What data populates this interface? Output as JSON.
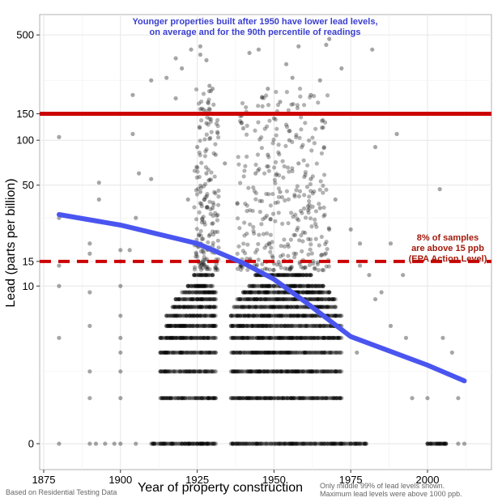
{
  "chart_data": {
    "type": "scatter",
    "title": "Younger properties built after 1950 have lower lead levels,",
    "subtitle": "on average and for the 90th percentile of readings",
    "xlabel": "Year of property construction",
    "ylabel": "Lead (parts per billion)",
    "x_ticks": [
      1875,
      1900,
      1925,
      1950,
      1975,
      2000
    ],
    "y_ticks": [
      0,
      10,
      15,
      50,
      100,
      150,
      500
    ],
    "y_scale": "log(y+1)",
    "xlim": [
      1873,
      2015
    ],
    "ylim": [
      -0.2,
      700
    ],
    "grid": true,
    "reference_lines": [
      {
        "y": 150,
        "style": "solid",
        "color": "#cc0000"
      },
      {
        "y": 15,
        "style": "dashed",
        "color": "#cc0000"
      }
    ],
    "annotation": [
      "8% of samples",
      "are above 15 ppb",
      "(EPA Action Level)"
    ],
    "point_color": "#000000",
    "point_opacity": 0.3,
    "dense_bands": [
      {
        "y": 0,
        "x_ranges": [
          [
            1910,
            1931
          ],
          [
            1936,
            1980
          ],
          [
            2000,
            2006
          ]
        ]
      },
      {
        "y": 1,
        "x_ranges": [
          [
            1913,
            1931
          ],
          [
            1936,
            1972
          ]
        ]
      },
      {
        "y": 2,
        "x_ranges": [
          [
            1913,
            1931
          ],
          [
            1936,
            1972
          ]
        ]
      },
      {
        "y": 3,
        "x_ranges": [
          [
            1913,
            1931
          ],
          [
            1936,
            1972
          ]
        ]
      },
      {
        "y": 4,
        "x_ranges": [
          [
            1913,
            1931
          ],
          [
            1936,
            1972
          ]
        ]
      },
      {
        "y": 5,
        "x_ranges": [
          [
            1915,
            1931
          ],
          [
            1936,
            1972
          ]
        ]
      },
      {
        "y": 6,
        "x_ranges": [
          [
            1915,
            1931
          ],
          [
            1936,
            1972
          ]
        ]
      },
      {
        "y": 7,
        "x_ranges": [
          [
            1917,
            1931
          ],
          [
            1937,
            1970
          ]
        ]
      },
      {
        "y": 8,
        "x_ranges": [
          [
            1918,
            1931
          ],
          [
            1938,
            1970
          ]
        ]
      },
      {
        "y": 9,
        "x_ranges": [
          [
            1920,
            1931
          ],
          [
            1940,
            1968
          ]
        ]
      },
      {
        "y": 10,
        "x_ranges": [
          [
            1922,
            1930
          ],
          [
            1942,
            1966
          ]
        ]
      },
      {
        "y": 12,
        "x_ranges": [
          [
            1924,
            1930
          ],
          [
            1944,
            1962
          ]
        ]
      }
    ],
    "points": [
      [
        1880,
        0
      ],
      [
        1890,
        0
      ],
      [
        1892,
        0
      ],
      [
        1895,
        0
      ],
      [
        1898,
        0
      ],
      [
        1900,
        0
      ],
      [
        1905,
        0
      ],
      [
        2010,
        0
      ],
      [
        2012,
        0
      ],
      [
        1880,
        4
      ],
      [
        1880,
        10
      ],
      [
        1880,
        14
      ],
      [
        1880,
        30
      ],
      [
        1880,
        105
      ],
      [
        1890,
        1
      ],
      [
        1890,
        2
      ],
      [
        1890,
        5
      ],
      [
        1890,
        9
      ],
      [
        1890,
        17
      ],
      [
        1890,
        20
      ],
      [
        1900,
        1
      ],
      [
        1900,
        2
      ],
      [
        1900,
        3
      ],
      [
        1900,
        4
      ],
      [
        1900,
        6
      ],
      [
        1900,
        10
      ],
      [
        1900,
        15
      ],
      [
        1900,
        18
      ],
      [
        1893,
        40
      ],
      [
        1893,
        52
      ],
      [
        1903,
        18
      ],
      [
        1905,
        30
      ],
      [
        1906,
        60
      ],
      [
        1910,
        55
      ],
      [
        1904,
        110
      ],
      [
        1904,
        150
      ],
      [
        1904,
        200
      ],
      [
        1910,
        250
      ],
      [
        1915,
        150
      ],
      [
        1915,
        260
      ],
      [
        1918,
        190
      ],
      [
        1918,
        350
      ],
      [
        1920,
        300
      ],
      [
        1923,
        400
      ],
      [
        1926,
        370
      ],
      [
        1926,
        420
      ],
      [
        1928,
        340
      ],
      [
        1929,
        230
      ],
      [
        1930,
        220
      ],
      [
        1927,
        160
      ],
      [
        1928,
        130
      ],
      [
        1925,
        90
      ],
      [
        1931,
        80
      ],
      [
        1928,
        60
      ],
      [
        1926,
        45
      ],
      [
        1930,
        35
      ],
      [
        1922,
        40
      ],
      [
        1934,
        70
      ],
      [
        1940,
        120
      ],
      [
        1942,
        380
      ],
      [
        1945,
        400
      ],
      [
        1948,
        220
      ],
      [
        1950,
        140
      ],
      [
        1952,
        180
      ],
      [
        1954,
        320
      ],
      [
        1956,
        260
      ],
      [
        1958,
        420
      ],
      [
        1960,
        150
      ],
      [
        1962,
        200
      ],
      [
        1965,
        250
      ],
      [
        1967,
        430
      ],
      [
        1968,
        470
      ],
      [
        1972,
        300
      ],
      [
        1944,
        60
      ],
      [
        1948,
        80
      ],
      [
        1952,
        45
      ],
      [
        1955,
        100
      ],
      [
        1958,
        70
      ],
      [
        1962,
        55
      ],
      [
        1965,
        35
      ],
      [
        1968,
        25
      ],
      [
        1970,
        40
      ],
      [
        1975,
        25
      ],
      [
        1978,
        20
      ],
      [
        1978,
        14
      ],
      [
        1981,
        12
      ],
      [
        1982,
        400
      ],
      [
        1983,
        90
      ],
      [
        1985,
        9
      ],
      [
        1988,
        5
      ],
      [
        1988,
        20
      ],
      [
        1990,
        110
      ],
      [
        1992,
        12
      ],
      [
        1993,
        4
      ],
      [
        1995,
        1
      ],
      [
        2005,
        4
      ],
      [
        2008,
        3
      ],
      [
        2010,
        1
      ],
      [
        2000,
        1
      ],
      [
        2004,
        47
      ],
      [
        1983,
        8
      ],
      [
        1977,
        3
      ]
    ],
    "smooth_line": {
      "color": "#4a55f0",
      "x": [
        1880,
        1900,
        1925,
        1940,
        1950,
        1960,
        1975,
        2000,
        2012
      ],
      "y": [
        31.6,
        26.8,
        20,
        14.6,
        11.2,
        7.7,
        4.1,
        2.3,
        1.6
      ]
    }
  },
  "notes": {
    "source": "Based on Residential Testing Data",
    "footnote1": "Only middle 99% of lead levels shown.",
    "footnote2": "Maximum lead levels were above 1000 ppb."
  }
}
